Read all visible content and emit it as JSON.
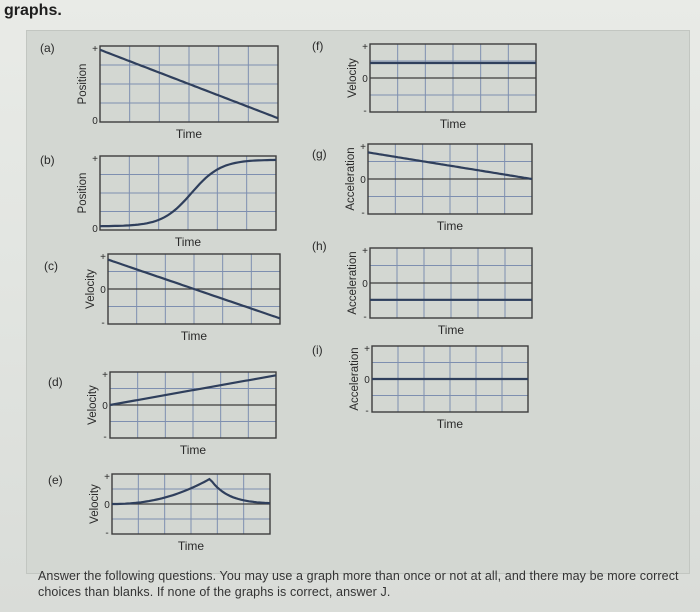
{
  "heading": "graphs.",
  "footer_text": "Answer the following questions. You may use a graph more than once or not at all, and there may be more correct choices than blanks. If none of the graphs is correct, answer J.",
  "graphs": [
    {
      "letter": "(a)",
      "ylabel": "Position",
      "xlabel": "Time",
      "axis_top": "+",
      "axis_mid": "",
      "axis_bottom": "0",
      "shape": "decreasing line from top to bottom"
    },
    {
      "letter": "(b)",
      "ylabel": "Position",
      "xlabel": "Time",
      "axis_top": "+",
      "axis_mid": "",
      "axis_bottom": "0",
      "shape": "S-curve rising then leveling off"
    },
    {
      "letter": "(c)",
      "ylabel": "Velocity",
      "xlabel": "Time",
      "axis_top": "+",
      "axis_mid": "0",
      "axis_bottom": "-",
      "shape": "decreasing line crossing zero"
    },
    {
      "letter": "(d)",
      "ylabel": "Velocity",
      "xlabel": "Time",
      "axis_top": "+",
      "axis_mid": "0",
      "axis_bottom": "-",
      "shape": "increasing line from zero"
    },
    {
      "letter": "(e)",
      "ylabel": "Velocity",
      "xlabel": "Time",
      "axis_top": "+",
      "axis_mid": "0",
      "axis_bottom": "-",
      "shape": "rising curve to a cusp then falling"
    },
    {
      "letter": "(f)",
      "ylabel": "Velocity",
      "xlabel": "Time",
      "axis_top": "+",
      "axis_mid": "0",
      "axis_bottom": "-",
      "shape": "constant positive"
    },
    {
      "letter": "(g)",
      "ylabel": "Acceleration",
      "xlabel": "Time",
      "axis_top": "+",
      "axis_mid": "0",
      "axis_bottom": "-",
      "shape": "decreasing positive line to zero"
    },
    {
      "letter": "(h)",
      "ylabel": "Acceleration",
      "xlabel": "Time",
      "axis_top": "+",
      "axis_mid": "0",
      "axis_bottom": "-",
      "shape": "constant negative"
    },
    {
      "letter": "(i)",
      "ylabel": "Acceleration",
      "xlabel": "Time",
      "axis_top": "+",
      "axis_mid": "0",
      "axis_bottom": "-",
      "shape": "constant zero"
    }
  ]
}
